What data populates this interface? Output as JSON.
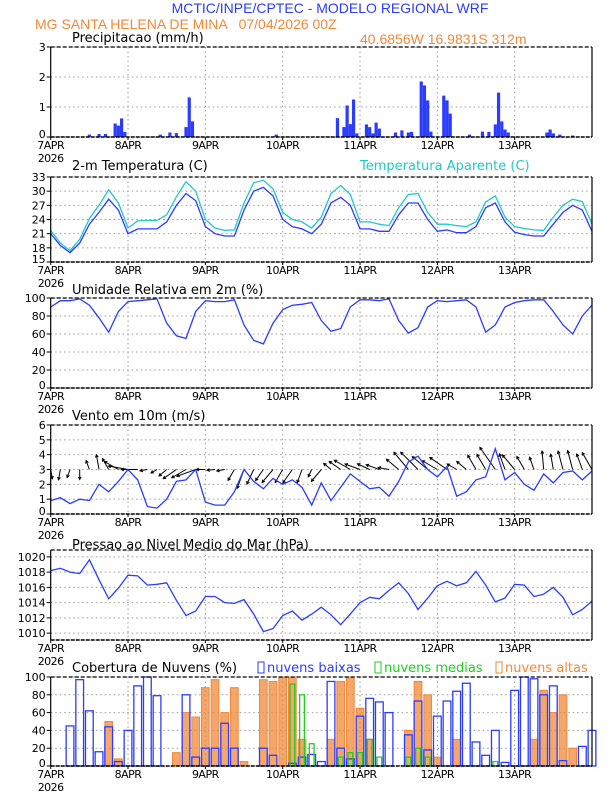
{
  "header": {
    "title": "MCTIC/INPE/CPTEC - MODELO REGIONAL WRF",
    "location": "MG SANTA HELENA DE MINA   07/04/2026 00Z",
    "coords": "40.6856W 16.9831S 312m"
  },
  "colors": {
    "title": "#2b3cff",
    "subtitle": "#f0883a",
    "temp": "#2b3cff",
    "apparent": "#20c8c8",
    "low": "#2b3cff",
    "mid": "#22cc22",
    "high": "#f0883a",
    "wind_arrow": "#000000"
  },
  "x_axis": {
    "day_labels": [
      "7APR",
      "8APR",
      "9APR",
      "10APR",
      "11APR",
      "12APR",
      "13APR"
    ],
    "year_label": "2026"
  },
  "times": [
    "07/00",
    "07/03",
    "07/06",
    "07/09",
    "07/12",
    "07/15",
    "07/18",
    "07/21",
    "08/00",
    "08/03",
    "08/06",
    "08/09",
    "08/12",
    "08/15",
    "08/18",
    "08/21",
    "09/00",
    "09/03",
    "09/06",
    "09/09",
    "09/12",
    "09/15",
    "09/18",
    "09/21",
    "10/00",
    "10/03",
    "10/06",
    "10/09",
    "10/12",
    "10/15",
    "10/18",
    "10/21",
    "11/00",
    "11/03",
    "11/06",
    "11/09",
    "11/12",
    "11/15",
    "11/18",
    "11/21",
    "12/00",
    "12/03",
    "12/06",
    "12/09",
    "12/12",
    "12/15",
    "12/18",
    "12/21",
    "13/00",
    "13/03",
    "13/06",
    "13/09",
    "13/12",
    "13/15",
    "13/18",
    "13/21",
    "14/00"
  ],
  "chart_data": [
    {
      "type": "bar",
      "title": "Precipitacao (mm/h)",
      "ylim": [
        0,
        3
      ],
      "yticks": [
        "0",
        "1",
        "2",
        "3"
      ],
      "grid": true,
      "x": [
        "07/12",
        "07/15",
        "07/17",
        "07/20",
        "07/21",
        "07/22",
        "07/23",
        "08/10",
        "08/13",
        "08/15",
        "08/18",
        "08/19",
        "08/20",
        "09/22",
        "10/17",
        "10/19",
        "10/20",
        "10/21",
        "10/22",
        "10/23",
        "11/02",
        "11/03",
        "11/04",
        "11/05",
        "11/06",
        "11/11",
        "11/13",
        "11/15",
        "11/16",
        "11/19",
        "11/20",
        "11/21",
        "11/22",
        "12/02",
        "12/03",
        "12/04",
        "12/10",
        "12/14",
        "12/16",
        "12/18",
        "12/19",
        "12/20",
        "12/21",
        "12/22",
        "13/10",
        "13/11",
        "13/12",
        "13/14",
        "13/18"
      ],
      "values": [
        0.08,
        0.1,
        0.1,
        0.45,
        0.38,
        0.62,
        0.17,
        0.08,
        0.15,
        0.13,
        0.33,
        1.32,
        0.52,
        0.08,
        0.63,
        0.33,
        1.05,
        0.43,
        1.25,
        0.12,
        0.42,
        0.33,
        0.12,
        0.48,
        0.28,
        0.15,
        0.22,
        0.15,
        0.17,
        1.85,
        1.72,
        1.22,
        0.18,
        1.38,
        1.22,
        0.78,
        0.08,
        0.18,
        0.17,
        0.42,
        1.48,
        0.52,
        0.25,
        0.15,
        0.15,
        0.25,
        0.12,
        0.08,
        0.05
      ]
    },
    {
      "type": "line",
      "title": "2-m Temperatura (C)",
      "ylim": [
        15,
        33
      ],
      "yticks": [
        "15",
        "18",
        "21",
        "24",
        "27",
        "30",
        "33"
      ],
      "grid": true,
      "legend": "top-right",
      "series": [
        {
          "name": "2-m Temperatura (C)",
          "values": [
            21,
            18.5,
            17,
            19,
            23,
            25.5,
            28.3,
            26,
            21,
            22,
            22,
            22,
            23.5,
            27,
            29.5,
            28,
            22.5,
            21,
            20.5,
            20.5,
            26,
            30,
            30.8,
            29,
            24,
            22.5,
            22,
            21,
            23,
            27.5,
            28.7,
            27,
            22,
            22,
            21.5,
            21.5,
            25,
            27.5,
            27.5,
            24,
            21.5,
            21.8,
            21.2,
            21.2,
            22.5,
            26.5,
            27.5,
            23.5,
            21.3,
            20.8,
            20.5,
            20.5,
            23,
            25.5,
            27,
            26,
            21.5
          ]
        },
        {
          "name": "Temperatura Aparente (C)",
          "values": [
            21.7,
            19,
            17.4,
            19.8,
            24.2,
            27,
            30.3,
            27.5,
            22.2,
            23.7,
            23.8,
            23.8,
            25,
            28.8,
            32,
            30,
            24,
            22.2,
            21.7,
            21.8,
            27.5,
            31.8,
            32.3,
            30.5,
            25.5,
            24,
            23.5,
            22.2,
            24.5,
            29.5,
            31.2,
            29.3,
            23.5,
            23.5,
            23,
            22.7,
            26.5,
            29.3,
            29.5,
            25.5,
            23,
            23,
            22.7,
            22.5,
            23.5,
            27.7,
            29,
            24.5,
            22.5,
            22.1,
            21.8,
            21.7,
            24.5,
            27,
            28.3,
            27.8,
            23
          ]
        }
      ]
    },
    {
      "type": "line",
      "title": "Umidade Relativa em 2m (%)",
      "ylim": [
        0,
        100
      ],
      "yticks": [
        "0",
        "20",
        "40",
        "60",
        "80",
        "100"
      ],
      "grid": true,
      "series": [
        {
          "values": [
            90,
            97,
            97,
            99,
            92,
            78,
            62,
            85,
            96,
            97,
            98,
            99,
            72,
            58,
            55,
            85,
            97,
            96,
            96,
            98,
            70,
            53,
            49,
            72,
            87,
            92,
            93,
            95,
            75,
            63,
            66,
            90,
            98,
            98,
            97,
            99,
            75,
            61,
            67,
            90,
            97,
            96,
            97,
            98,
            90,
            62,
            70,
            90,
            95,
            97,
            98,
            98,
            85,
            70,
            60,
            80,
            92
          ]
        }
      ]
    },
    {
      "type": "line",
      "title": "Vento em 10m (m/s)",
      "ylim": [
        0,
        6
      ],
      "yticks": [
        "0",
        "1",
        "2",
        "3",
        "4",
        "5",
        "6"
      ],
      "grid": true,
      "series": [
        {
          "values": [
            0.9,
            1.1,
            0.7,
            1.0,
            0.9,
            2.0,
            1.5,
            2.2,
            3.0,
            2.3,
            0.5,
            0.4,
            1.0,
            2.2,
            2.3,
            3.0,
            0.8,
            0.6,
            0.6,
            1.5,
            3.0,
            2.2,
            1.7,
            2.4,
            2.0,
            2.3,
            1.8,
            0.6,
            2.1,
            0.9,
            1.8,
            2.7,
            2.2,
            1.7,
            1.8,
            1.2,
            2.2,
            3.5,
            3.9,
            3.0,
            2.5,
            3.2,
            1.2,
            1.5,
            2.3,
            2.5,
            4.4,
            2.3,
            2.8,
            2.0,
            1.6,
            2.7,
            2.1,
            2.8,
            2.9,
            2.3,
            2.9
          ]
        }
      ],
      "wind_direction_deg": [
        350,
        10,
        20,
        0,
        160,
        170,
        150,
        120,
        100,
        90,
        80,
        60,
        50,
        55,
        60,
        70,
        90,
        85,
        80,
        30,
        20,
        25,
        35,
        40,
        30,
        35,
        20,
        25,
        40,
        130,
        125,
        120,
        110,
        115,
        110,
        100,
        130,
        140,
        135,
        130,
        120,
        125,
        120,
        130,
        150,
        150,
        145,
        160,
        140,
        150,
        160,
        175,
        170,
        165,
        165,
        160,
        150
      ]
    },
    {
      "type": "line",
      "title": "Pressao ao Nivel Medio do Mar (hPa)",
      "ylim": [
        1009.1,
        1020.9
      ],
      "yticks": [
        "1010",
        "1012",
        "1014",
        "1016",
        "1018",
        "1020"
      ],
      "grid": true,
      "series": [
        {
          "values": [
            1018.2,
            1018.5,
            1018,
            1017.8,
            1019.6,
            1017,
            1014.5,
            1015.9,
            1017.6,
            1017.5,
            1016.3,
            1016.4,
            1016.6,
            1014.3,
            1012.3,
            1012.9,
            1014.8,
            1014.8,
            1014,
            1013.9,
            1014.4,
            1012.5,
            1010.2,
            1010.6,
            1012.3,
            1012.9,
            1011.7,
            1012.5,
            1013.4,
            1012.4,
            1011.1,
            1012.5,
            1014,
            1014.7,
            1014.5,
            1015.6,
            1016.6,
            1015.2,
            1013.1,
            1014.6,
            1016.2,
            1016.8,
            1016.2,
            1016.6,
            1018.1,
            1016.3,
            1014.1,
            1014.6,
            1016.4,
            1016.3,
            1014.8,
            1015.1,
            1016,
            1014.7,
            1012.4,
            1013.1,
            1014.2
          ]
        }
      ]
    },
    {
      "type": "bar",
      "title": "Cobertura de Nuvens (%)",
      "ylim": [
        0,
        100
      ],
      "yticks": [
        "0",
        "20",
        "40",
        "60",
        "80",
        "100"
      ],
      "grid": true,
      "legend": "top",
      "series": [
        {
          "name": "nuvens baixas",
          "values": [
            0,
            0,
            45,
            97,
            62,
            16,
            44,
            5,
            40,
            90,
            100,
            79,
            0,
            0,
            80,
            10,
            20,
            20,
            48,
            20,
            0,
            0,
            20,
            12,
            0,
            3,
            10,
            13,
            5,
            95,
            20,
            8,
            56,
            76,
            72,
            60,
            0,
            35,
            73,
            18,
            56,
            73,
            84,
            93,
            27,
            12,
            40,
            4,
            85,
            100,
            98,
            80,
            90,
            6,
            0,
            22,
            40
          ]
        },
        {
          "name": "nuvens medias",
          "values": [
            0,
            0,
            0,
            0,
            0,
            0,
            0,
            0,
            0,
            0,
            0,
            0,
            0,
            0,
            0,
            0,
            0,
            0,
            0,
            0,
            0,
            0,
            0,
            0,
            0,
            92,
            80,
            25,
            0,
            0,
            10,
            15,
            15,
            30,
            10,
            0,
            0,
            10,
            20,
            10,
            0,
            0,
            0,
            0,
            0,
            0,
            5,
            0,
            0,
            0,
            0,
            0,
            0,
            0,
            0,
            0,
            0
          ]
        },
        {
          "name": "nuvens altas",
          "values": [
            0,
            0,
            0,
            0,
            0,
            0,
            50,
            8,
            0,
            0,
            0,
            0,
            0,
            15,
            60,
            55,
            88,
            97,
            60,
            88,
            5,
            0,
            97,
            95,
            100,
            100,
            30,
            0,
            0,
            30,
            95,
            100,
            65,
            30,
            0,
            0,
            0,
            40,
            95,
            80,
            10,
            0,
            30,
            0,
            0,
            0,
            0,
            0,
            0,
            0,
            30,
            85,
            60,
            80,
            20,
            0,
            0
          ]
        }
      ]
    }
  ]
}
